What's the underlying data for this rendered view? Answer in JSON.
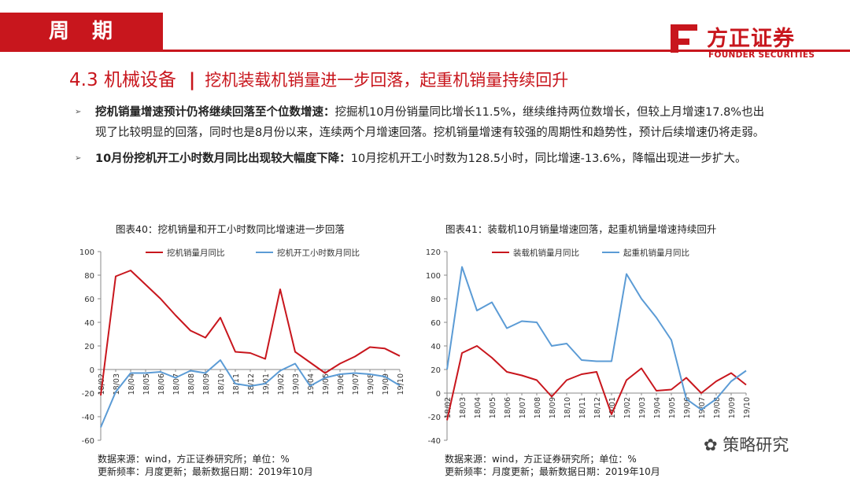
{
  "header": {
    "tag": "周 期",
    "section_number": "4.3",
    "section_title": "机械设备",
    "separator": "|",
    "section_subtitle": "挖机装载机销量进一步回落，起重机销量持续回升"
  },
  "brand": {
    "name_cn": "方正证券",
    "name_en": "FOUNDER SECURITIES",
    "accent": "#c8161d"
  },
  "bullets": [
    {
      "bold": "挖机销量增速预计仍将继续回落至个位数增速：",
      "text": "挖掘机10月份销量同比增长11.5%，继续维持两位数增长，但较上月增速17.8%也出现了比较明显的回落，同时也是8月份以来，连续两个月增速回落。挖机销量增速有较强的周期性和趋势性，预计后续增速仍将走弱。"
    },
    {
      "bold": "10月份挖机开工小时数月同比出现较大幅度下降：",
      "text": "10月挖机开工小时数为128.5小时，同比增速-13.6%，降幅出现进一步扩大。"
    }
  ],
  "footer": {
    "left": [
      "数据来源：wind，方正证券研究所；单位：%",
      "更新频率：月度更新；最新数据日期：2019年10月"
    ],
    "right": [
      "数据来源：wind，方正证券研究所；单位：%",
      "更新频率：月度更新；最新数据日期：2019年10月"
    ]
  },
  "watermark": "策略研究",
  "chart_data": [
    {
      "type": "line",
      "title": "图表40：挖机销量和开工小时数同比增速进一步回落",
      "categories": [
        "18/02",
        "18/03",
        "18/04",
        "18/05",
        "18/06",
        "18/07",
        "18/08",
        "18/09",
        "18/10",
        "18/11",
        "18/12",
        "19/01",
        "19/02",
        "19/03",
        "19/04",
        "19/05",
        "19/06",
        "19/07",
        "19/08",
        "19/09",
        "19/10"
      ],
      "series": [
        {
          "name": "挖机销量月同比",
          "color": "#c8161d",
          "values": [
            -22,
            79,
            84,
            72,
            60,
            46,
            33,
            27,
            44,
            15,
            14,
            9,
            68,
            15,
            6,
            -3,
            5,
            11,
            19,
            17.8,
            11.5
          ]
        },
        {
          "name": "挖机开工小时数月同比",
          "color": "#5b9bd5",
          "values": [
            -49,
            -19,
            -3,
            -3,
            -2,
            -7,
            -1,
            -3,
            8,
            -12,
            -14,
            -12,
            -1,
            5,
            -14,
            -7,
            -4,
            -3,
            -4,
            -6,
            -13.6
          ]
        }
      ],
      "ylim": [
        -60,
        100
      ],
      "yticks": [
        -60,
        -40,
        -20,
        0,
        20,
        40,
        60,
        80,
        100
      ],
      "legend": "top"
    },
    {
      "type": "line",
      "title": "图表41：装载机10月销量增速回落，起重机销量增速持续回升",
      "categories": [
        "18/02",
        "18/03",
        "18/04",
        "18/05",
        "18/06",
        "18/07",
        "18/08",
        "18/09",
        "18/10",
        "18/11",
        "18/12",
        "19/01",
        "19/02",
        "19/03",
        "19/04",
        "19/05",
        "19/06",
        "19/07",
        "19/08",
        "19/09",
        "19/10"
      ],
      "series": [
        {
          "name": "装载机销量月同比",
          "color": "#c8161d",
          "values": [
            -23,
            34,
            40,
            30,
            18,
            15,
            11,
            -3,
            11,
            16,
            18,
            -18,
            11,
            21,
            2,
            3,
            13,
            0,
            10,
            17,
            7
          ]
        },
        {
          "name": "起重机销量月同比",
          "color": "#5b9bd5",
          "values": [
            20,
            107,
            70,
            77,
            55,
            61,
            60,
            40,
            42,
            28,
            27,
            27,
            101,
            80,
            64,
            45,
            -5,
            -14,
            -5,
            10,
            19
          ]
        }
      ],
      "ylim": [
        -40,
        120
      ],
      "yticks": [
        -40,
        -20,
        0,
        20,
        40,
        60,
        80,
        100,
        120
      ],
      "legend": "top"
    }
  ]
}
